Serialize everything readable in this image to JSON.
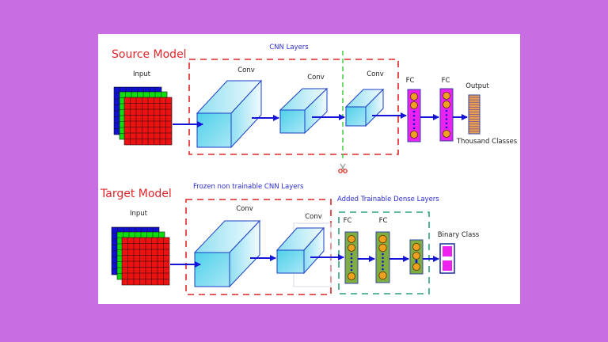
{
  "source": {
    "title": "Source Model",
    "cnn_label": "CNN Layers",
    "input_label": "Input",
    "conv_labels": [
      "Conv",
      "Conv",
      "Conv"
    ],
    "fc_labels": [
      "FC",
      "FC"
    ],
    "output_label": "Output",
    "classes_label": "Thousand Classes",
    "cut_icon": "scissors-icon"
  },
  "target": {
    "title": "Target Model",
    "frozen_label": "Frozen non trainable CNN Layers",
    "dense_label": "Added Trainable Dense Layers",
    "input_label": "Input",
    "conv_labels": [
      "Conv",
      "Conv"
    ],
    "fc_labels": [
      "FC",
      "FC"
    ],
    "binary_label": "Binary Class"
  },
  "colors": {
    "background": "#c86ee2",
    "title": "#e0262a",
    "annotation": "#2b2bd6",
    "frozen_box": "#e0262a",
    "trainable_box": "#2aa57a",
    "cut_line": "#33cc33",
    "fc_source": "#ee22ee",
    "fc_target": "#7fae3e"
  }
}
